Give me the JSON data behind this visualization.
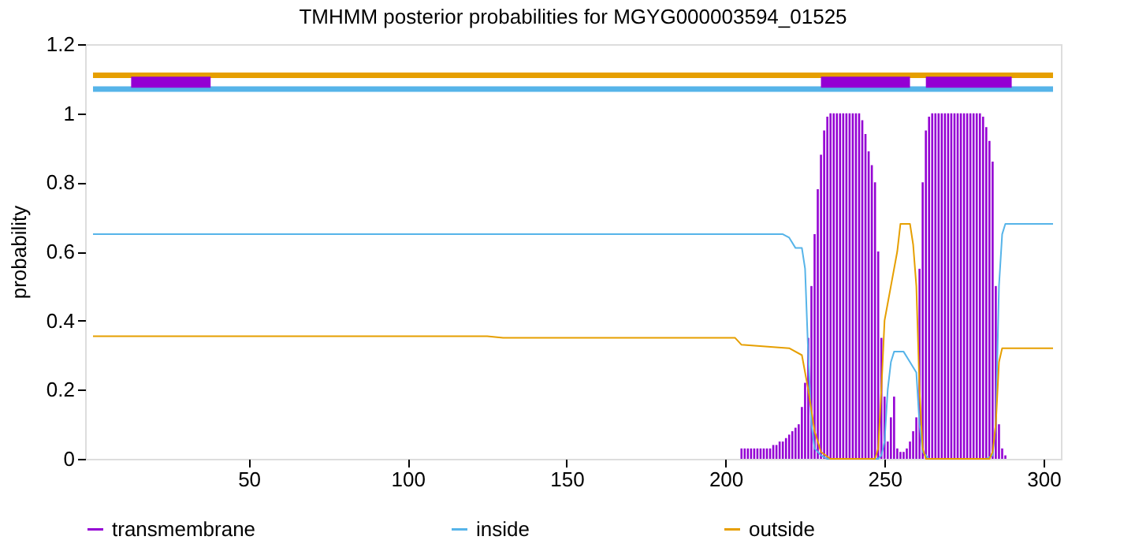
{
  "chart_data": {
    "type": "line",
    "title": "TMHMM posterior probabilities for MGYG000003594_01525",
    "ylabel": "probability",
    "xlim": [
      1,
      303
    ],
    "xticks": [
      50,
      100,
      150,
      200,
      250,
      300
    ],
    "ylim": [
      0,
      1.2
    ],
    "yticks": [
      0,
      0.2,
      0.4,
      0.6,
      0.8,
      1,
      1.2
    ],
    "grid": false,
    "legend": "bottom",
    "line_style": "solid",
    "marker": "none",
    "series": [
      {
        "name": "transmembrane",
        "type": "bar",
        "color": "#9400d3",
        "x": [
          205,
          206,
          207,
          208,
          209,
          210,
          211,
          212,
          213,
          214,
          215,
          216,
          217,
          218,
          219,
          220,
          221,
          222,
          223,
          224,
          225,
          226,
          227,
          228,
          229,
          230,
          231,
          232,
          233,
          234,
          235,
          236,
          237,
          238,
          239,
          240,
          241,
          242,
          243,
          244,
          245,
          246,
          247,
          248,
          249,
          250,
          251,
          252,
          253,
          254,
          255,
          256,
          257,
          258,
          259,
          260,
          261,
          262,
          263,
          264,
          265,
          266,
          267,
          268,
          269,
          270,
          271,
          272,
          273,
          274,
          275,
          276,
          277,
          278,
          279,
          280,
          281,
          282,
          283,
          284,
          285,
          286,
          287,
          288
        ],
        "values": [
          0.03,
          0.03,
          0.03,
          0.03,
          0.03,
          0.03,
          0.03,
          0.03,
          0.03,
          0.03,
          0.04,
          0.04,
          0.05,
          0.05,
          0.06,
          0.07,
          0.08,
          0.09,
          0.1,
          0.15,
          0.22,
          0.35,
          0.5,
          0.65,
          0.78,
          0.88,
          0.95,
          0.99,
          1,
          1,
          1,
          1,
          1,
          1,
          1,
          1,
          1,
          1,
          0.98,
          0.94,
          0.89,
          0.85,
          0.8,
          0.6,
          0.35,
          0.18,
          0.05,
          0.12,
          0.18,
          0.03,
          0.02,
          0.02,
          0.03,
          0.05,
          0.08,
          0.12,
          0.55,
          0.8,
          0.95,
          0.99,
          1,
          1,
          1,
          1,
          1,
          1,
          1,
          1,
          1,
          1,
          1,
          1,
          1,
          1,
          1,
          1,
          0.99,
          0.96,
          0.92,
          0.86,
          0.5,
          0.1,
          0.03,
          0.01
        ]
      },
      {
        "name": "inside",
        "color": "#56b4e9",
        "x": [
          1,
          218,
          220,
          222,
          224,
          225,
          226,
          227,
          228,
          230,
          232,
          248,
          249,
          250,
          251,
          252,
          253,
          256,
          258,
          260,
          261,
          262,
          264,
          282,
          284,
          285,
          286,
          287,
          288,
          303
        ],
        "values": [
          0.65,
          0.65,
          0.64,
          0.61,
          0.61,
          0.55,
          0.3,
          0.1,
          0.03,
          0.01,
          0,
          0,
          0.01,
          0.05,
          0.2,
          0.28,
          0.31,
          0.31,
          0.28,
          0.25,
          0.1,
          0.02,
          0,
          0,
          0.01,
          0.1,
          0.5,
          0.65,
          0.68,
          0.68
        ]
      },
      {
        "name": "outside",
        "color": "#e69f00",
        "x": [
          1,
          125,
          130,
          203,
          205,
          220,
          224,
          226,
          228,
          230,
          233,
          247,
          248,
          249,
          250,
          251,
          252,
          254,
          255,
          258,
          259,
          260,
          261,
          262,
          263,
          283,
          284,
          285,
          286,
          287,
          303
        ],
        "values": [
          0.355,
          0.355,
          0.35,
          0.35,
          0.33,
          0.32,
          0.3,
          0.2,
          0.08,
          0.02,
          0,
          0,
          0.03,
          0.2,
          0.4,
          0.45,
          0.5,
          0.6,
          0.68,
          0.68,
          0.62,
          0.5,
          0.2,
          0.03,
          0,
          0,
          0.02,
          0.1,
          0.28,
          0.32,
          0.32
        ]
      },
      {
        "color": "#e69f00",
        "x": [
          1,
          303
        ],
        "values": [
          1.11,
          1.11
        ]
      },
      {
        "color": "#56b4e9",
        "x": [
          1,
          303
        ],
        "values": [
          1.07,
          1.07
        ]
      },
      {
        "color": "#9400d3",
        "x": [
          13,
          38
        ],
        "values": [
          1.09,
          1.09
        ]
      },
      {
        "color": "#9400d3",
        "x": [
          230,
          258
        ],
        "values": [
          1.09,
          1.09
        ]
      },
      {
        "color": "#9400d3",
        "x": [
          263,
          290
        ],
        "values": [
          1.09,
          1.09
        ]
      }
    ]
  }
}
